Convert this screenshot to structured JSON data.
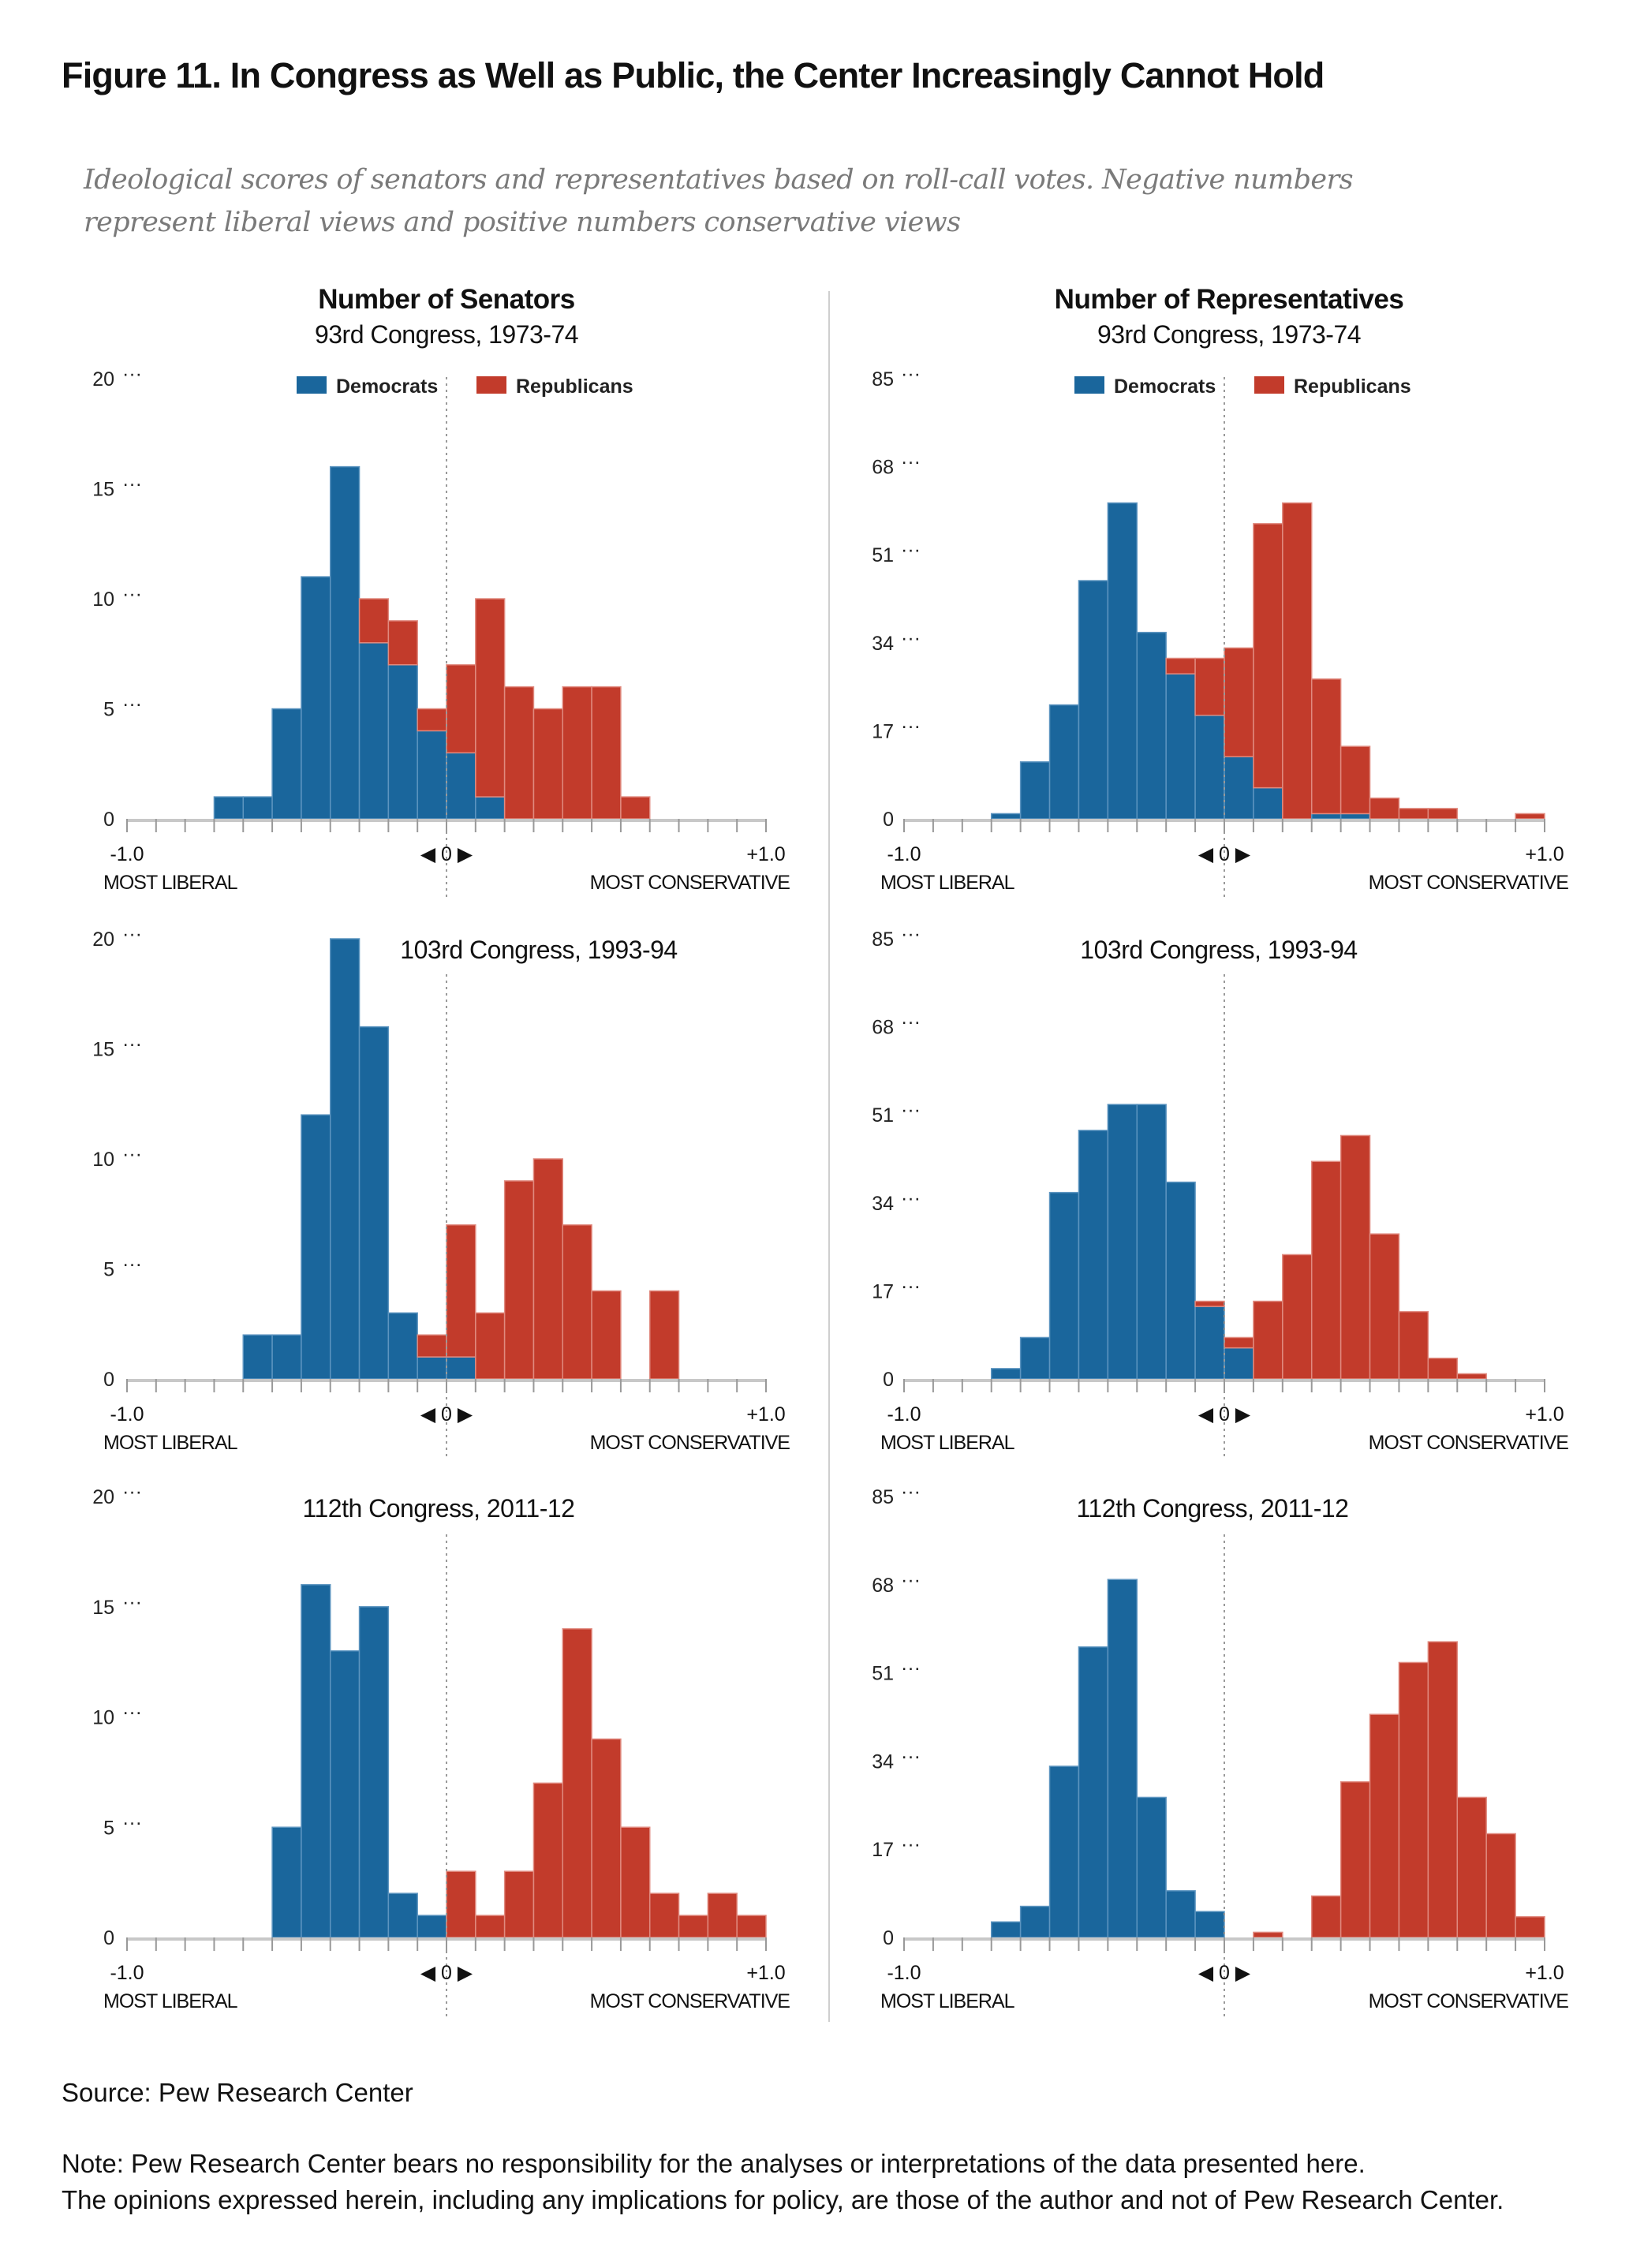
{
  "title": "Figure 11. In Congress as Well as Public, the Center Increasingly Cannot Hold",
  "subtitle_lines": [
    "Ideological scores of senators and representatives based on roll-call votes. Negative numbers",
    "represent liberal views and positive numbers conservative views"
  ],
  "columns": {
    "senate": "Number of Senators",
    "house": "Number of Representatives"
  },
  "footer": {
    "source": "Source: Pew Research Center",
    "note_lines": [
      "Note: Pew Research Center bears no responsibility for the analyses or interpretations of the data presented here.",
      "The opinions expressed herein, including any implications for policy, are those of the author and not of Pew Research Center."
    ]
  },
  "colors": {
    "democrats": "#1a669c",
    "republicans": "#c23b2b"
  },
  "chart_data": [
    {
      "type": "bar",
      "stacked": true,
      "chamber": "Senate",
      "title": "93rd Congress, 1973-74",
      "xlim": [
        -1,
        1
      ],
      "bins": 22,
      "ylim": [
        0,
        20
      ],
      "yticks": [
        0,
        5,
        10,
        15,
        20
      ],
      "xtick_labels": [
        "-1.0",
        "◀ 0 ▶",
        "+1.0"
      ],
      "xlabel_left": "MOST LIBERAL",
      "xlabel_right": "MOST CONSERVATIVE",
      "legend": [
        "Democrats",
        "Republicans"
      ],
      "series": [
        {
          "name": "Democrats",
          "values": [
            0,
            0,
            0,
            1,
            1,
            5,
            11,
            16,
            8,
            7,
            4,
            3,
            1,
            0,
            0,
            0,
            0,
            0,
            0,
            0,
            0,
            0
          ]
        },
        {
          "name": "Republicans",
          "values": [
            0,
            0,
            0,
            0,
            0,
            0,
            0,
            0,
            2,
            2,
            1,
            4,
            9,
            6,
            5,
            6,
            6,
            1,
            0,
            0,
            0,
            0
          ]
        }
      ]
    },
    {
      "type": "bar",
      "stacked": true,
      "chamber": "House",
      "title": "93rd Congress, 1973-74",
      "xlim": [
        -1,
        1
      ],
      "bins": 22,
      "ylim": [
        0,
        85
      ],
      "yticks": [
        0,
        17,
        34,
        51,
        68,
        85
      ],
      "xtick_labels": [
        "-1.0",
        "◀ 0 ▶",
        "+1.0"
      ],
      "xlabel_left": "MOST LIBERAL",
      "xlabel_right": "MOST CONSERVATIVE",
      "legend": [
        "Democrats",
        "Republicans"
      ],
      "series": [
        {
          "name": "Democrats",
          "values": [
            0,
            0,
            0,
            1,
            11,
            22,
            46,
            61,
            36,
            28,
            20,
            12,
            6,
            0,
            1,
            1,
            0,
            0,
            0,
            0,
            0,
            0
          ]
        },
        {
          "name": "Republicans",
          "values": [
            0,
            0,
            0,
            0,
            0,
            0,
            0,
            0,
            0,
            3,
            11,
            21,
            51,
            61,
            26,
            13,
            4,
            2,
            2,
            0,
            0,
            1
          ]
        }
      ]
    },
    {
      "type": "bar",
      "stacked": true,
      "chamber": "Senate",
      "title": "103rd Congress, 1993-94",
      "xlim": [
        -1,
        1
      ],
      "bins": 22,
      "ylim": [
        0,
        20
      ],
      "yticks": [
        0,
        5,
        10,
        15,
        20
      ],
      "xtick_labels": [
        "-1.0",
        "◀ 0 ▶",
        "+1.0"
      ],
      "xlabel_left": "MOST LIBERAL",
      "xlabel_right": "MOST CONSERVATIVE",
      "series": [
        {
          "name": "Democrats",
          "values": [
            0,
            0,
            0,
            0,
            2,
            2,
            12,
            20,
            16,
            3,
            1,
            1,
            0,
            0,
            0,
            0,
            0,
            0,
            0,
            0,
            0,
            0
          ]
        },
        {
          "name": "Republicans",
          "values": [
            0,
            0,
            0,
            0,
            0,
            0,
            0,
            0,
            0,
            0,
            1,
            6,
            3,
            9,
            10,
            7,
            4,
            0,
            4,
            0,
            0,
            0
          ]
        }
      ]
    },
    {
      "type": "bar",
      "stacked": true,
      "chamber": "House",
      "title": "103rd Congress, 1993-94",
      "xlim": [
        -1,
        1
      ],
      "bins": 22,
      "ylim": [
        0,
        85
      ],
      "yticks": [
        0,
        17,
        34,
        51,
        68,
        85
      ],
      "xtick_labels": [
        "-1.0",
        "◀ 0 ▶",
        "+1.0"
      ],
      "xlabel_left": "MOST LIBERAL",
      "xlabel_right": "MOST CONSERVATIVE",
      "series": [
        {
          "name": "Democrats",
          "values": [
            0,
            0,
            0,
            2,
            8,
            36,
            48,
            53,
            53,
            38,
            14,
            6,
            0,
            0,
            0,
            0,
            0,
            0,
            0,
            0,
            0,
            0
          ]
        },
        {
          "name": "Republicans",
          "values": [
            0,
            0,
            0,
            0,
            0,
            0,
            0,
            0,
            0,
            0,
            1,
            2,
            15,
            24,
            42,
            47,
            28,
            13,
            4,
            1,
            0,
            0
          ]
        }
      ]
    },
    {
      "type": "bar",
      "stacked": true,
      "chamber": "Senate",
      "title": "112th Congress, 2011-12",
      "xlim": [
        -1,
        1
      ],
      "bins": 22,
      "ylim": [
        0,
        20
      ],
      "yticks": [
        0,
        5,
        10,
        15,
        20
      ],
      "xtick_labels": [
        "-1.0",
        "◀ 0 ▶",
        "+1.0"
      ],
      "xlabel_left": "MOST LIBERAL",
      "xlabel_right": "MOST CONSERVATIVE",
      "series": [
        {
          "name": "Democrats",
          "values": [
            0,
            0,
            0,
            0,
            0,
            5,
            16,
            13,
            15,
            2,
            1,
            0,
            0,
            0,
            0,
            0,
            0,
            0,
            0,
            0,
            0,
            0
          ]
        },
        {
          "name": "Republicans",
          "values": [
            0,
            0,
            0,
            0,
            0,
            0,
            0,
            0,
            0,
            0,
            0,
            3,
            1,
            3,
            7,
            14,
            9,
            5,
            2,
            1,
            2,
            1
          ]
        }
      ]
    },
    {
      "type": "bar",
      "stacked": true,
      "chamber": "House",
      "title": "112th Congress, 2011-12",
      "xlim": [
        -1,
        1
      ],
      "bins": 22,
      "ylim": [
        0,
        85
      ],
      "yticks": [
        0,
        17,
        34,
        51,
        68,
        85
      ],
      "xtick_labels": [
        "-1.0",
        "◀ 0 ▶",
        "+1.0"
      ],
      "xlabel_left": "MOST LIBERAL",
      "xlabel_right": "MOST CONSERVATIVE",
      "series": [
        {
          "name": "Democrats",
          "values": [
            0,
            0,
            0,
            3,
            6,
            33,
            56,
            69,
            27,
            9,
            5,
            0,
            0,
            0,
            0,
            0,
            0,
            0,
            0,
            0,
            0,
            0
          ]
        },
        {
          "name": "Republicans",
          "values": [
            0,
            0,
            0,
            0,
            0,
            0,
            0,
            0,
            0,
            0,
            0,
            0,
            1,
            0,
            8,
            30,
            43,
            53,
            57,
            27,
            20,
            4
          ]
        }
      ]
    }
  ]
}
